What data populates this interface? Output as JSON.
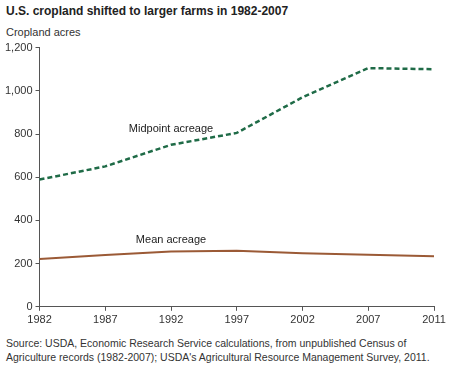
{
  "chart_data": {
    "type": "line",
    "title": "U.S. cropland shifted to larger farms in 1982-2007",
    "y_label": "Cropland acres",
    "source": "Source: USDA, Economic Research Service calculations, from unpublished Census of Agriculture records (1982-2007); USDA's Agricultural Resource Management Survey, 2011.",
    "categories": [
      "1982",
      "1987",
      "1992",
      "1997",
      "2002",
      "2007",
      "2011"
    ],
    "series": [
      {
        "name": "Midpoint acreage",
        "color": "#1f6b47",
        "line_style": "dashed",
        "values": [
          589,
          650,
          750,
          805,
          970,
          1105,
          1100
        ]
      },
      {
        "name": "Mean acreage",
        "color": "#9b5a36",
        "line_style": "solid",
        "values": [
          221,
          240,
          256,
          260,
          248,
          241,
          234
        ]
      }
    ],
    "ylim": [
      0,
      1200
    ],
    "yticks": [
      0,
      200,
      400,
      600,
      800,
      {
        "value": 1000,
        "label": "1,000"
      },
      {
        "value": 1200,
        "label": "1,200"
      }
    ],
    "grid": false
  }
}
